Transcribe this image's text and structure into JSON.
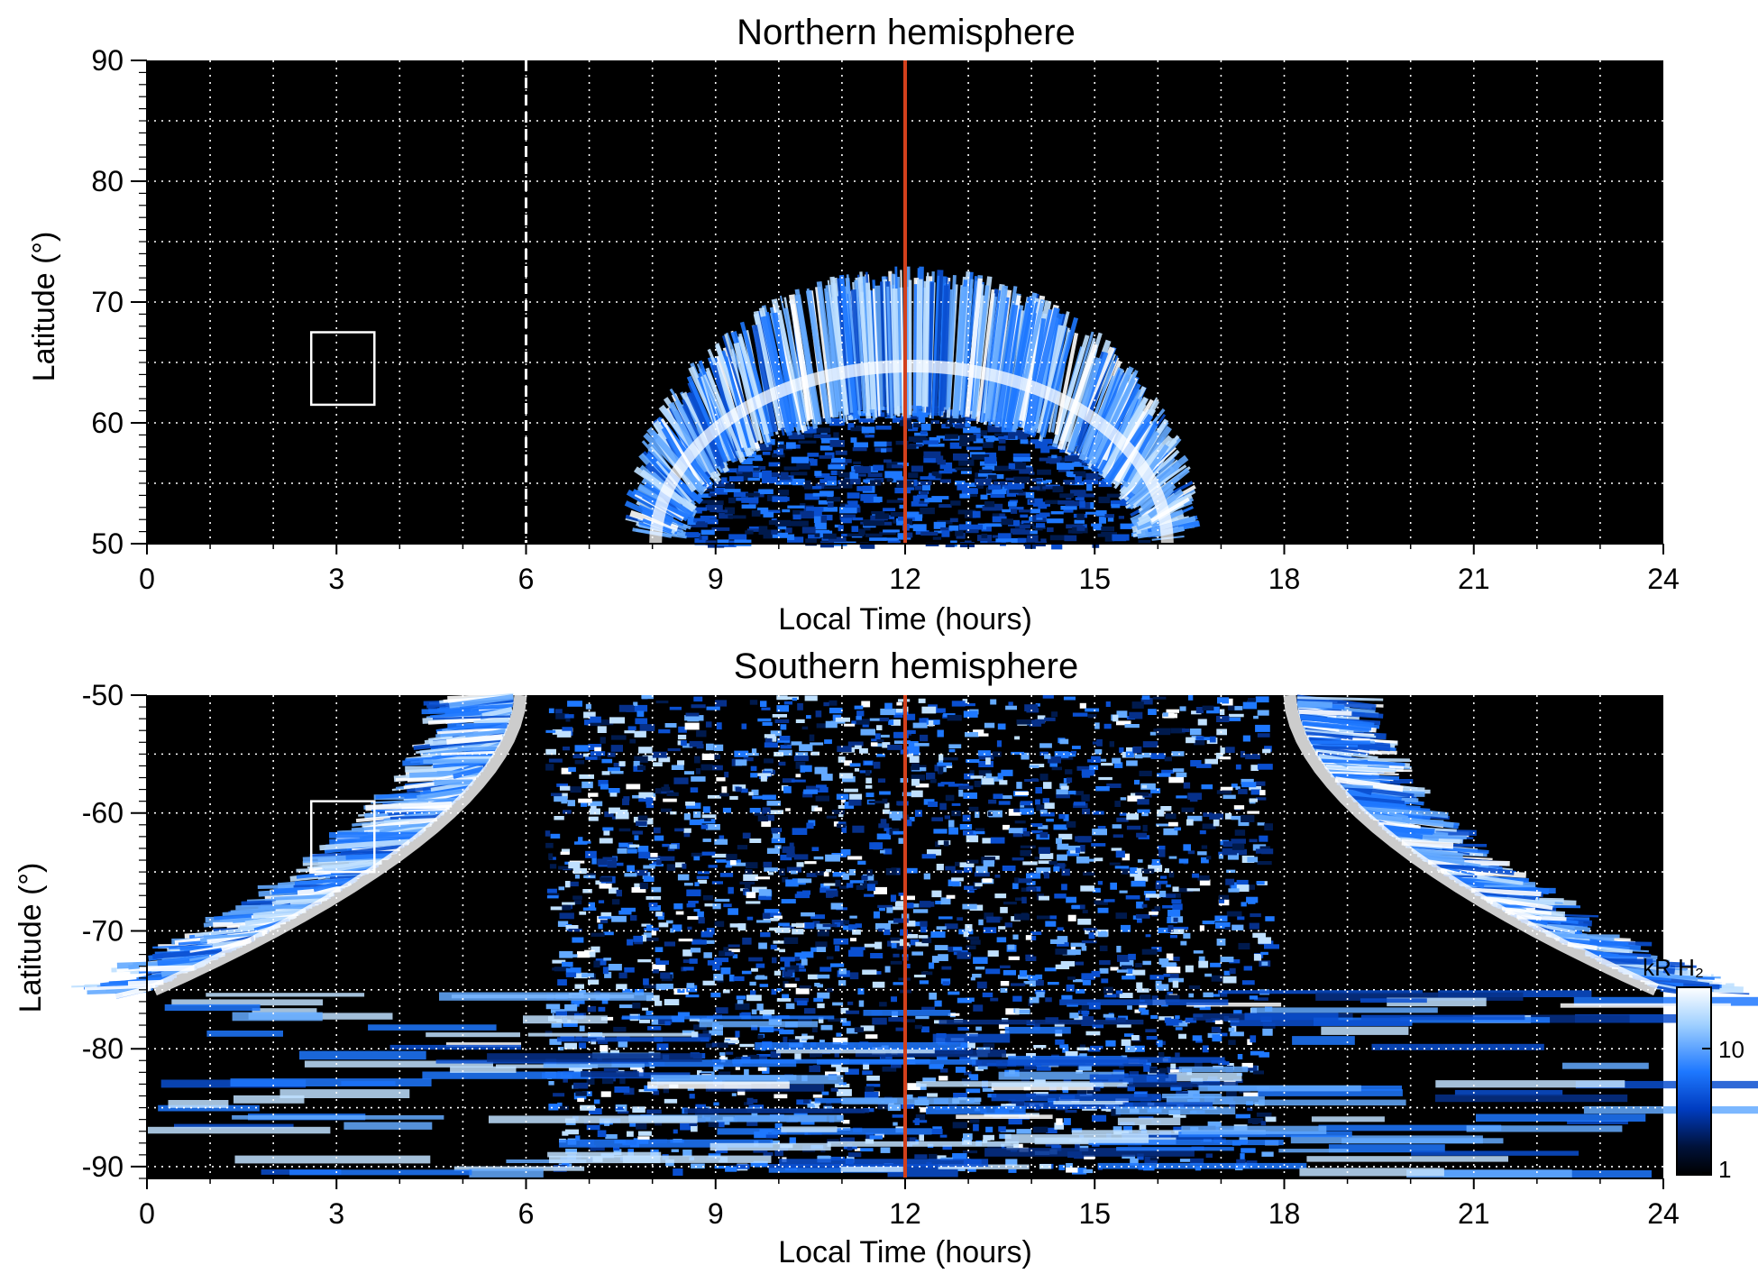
{
  "figure": {
    "colors": {
      "background": "#000000",
      "emission_low": "#001a4d",
      "emission_mid": "#1e78ff",
      "emission_high": "#ffffff",
      "noon_line": "#d2401c",
      "grid": "#ffffff",
      "box": "#ffffff"
    },
    "colorbar": {
      "title": "kR H₂",
      "ticks": [
        "10",
        "1"
      ],
      "colors": [
        "#ffffff",
        "#9fd0ff",
        "#1e78ff",
        "#003cc0",
        "#00123a",
        "#000000"
      ]
    }
  },
  "chart_data": [
    {
      "type": "heatmap",
      "title": "Northern hemisphere",
      "xlabel": "Local Time (hours)",
      "ylabel": "Latitude (°)",
      "xlim": [
        0,
        24
      ],
      "ylim": [
        50,
        90
      ],
      "xticks": [
        "0",
        "3",
        "6",
        "9",
        "12",
        "15",
        "18",
        "21",
        "24"
      ],
      "yticks": [
        "90",
        "80",
        "70",
        "60",
        "50"
      ],
      "grid": true,
      "noon_line_lt": 12,
      "dashed_line_lt": 6,
      "box": {
        "lt_range": [
          2.6,
          3.6
        ],
        "lat_range": [
          61.5,
          67.5
        ]
      },
      "auroral_oval": {
        "lt_range": [
          7.6,
          16.6
        ],
        "equatorward_edge_lat": 50,
        "poleward_edge_lat_at_noon": 73,
        "brightest_band_lat_at_noon": 64
      }
    },
    {
      "type": "heatmap",
      "title": "Southern hemisphere",
      "xlabel": "Local Time (hours)",
      "ylabel": "Latitude (°)",
      "xlim": [
        0,
        24
      ],
      "ylim": [
        -91,
        -50
      ],
      "xticks": [
        "0",
        "3",
        "6",
        "9",
        "12",
        "15",
        "18",
        "21",
        "24"
      ],
      "yticks": [
        "-50",
        "-60",
        "-70",
        "-80",
        "-90"
      ],
      "grid": true,
      "noon_line_lt": 12,
      "box": {
        "lt_range": [
          2.6,
          3.6
        ],
        "lat_range": [
          -65,
          -59
        ]
      },
      "auroral_oval": {
        "lt_range": [
          0,
          24
        ],
        "bright_arc_lt_at_lat_minus50": [
          5.8,
          18.2
        ],
        "equatorward_edge_lat_at_midnight": -75
      }
    }
  ]
}
